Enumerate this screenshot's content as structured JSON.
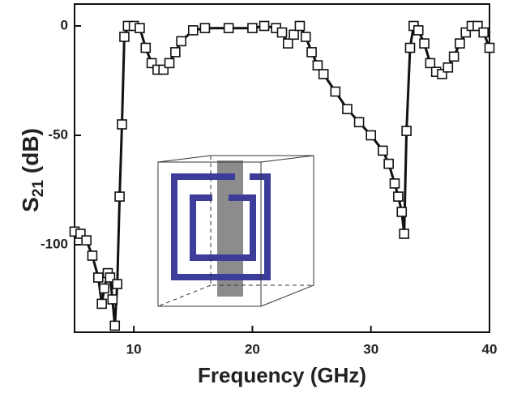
{
  "chart_data": {
    "type": "line",
    "x_label": "Frequency (GHz)",
    "y_label": {
      "main": "S",
      "sub": "21",
      "unit": "(dB)"
    },
    "xlim": [
      5,
      40
    ],
    "ylim": [
      -140,
      10
    ],
    "xticks": [
      10,
      20,
      30,
      40
    ],
    "yticks": [
      0,
      -50,
      -100
    ],
    "series": [
      {
        "color": "#111111",
        "marker": "square",
        "x": [
          5,
          5.5,
          6,
          6.5,
          7,
          7.3,
          7.5,
          7.8,
          8,
          8.2,
          8.4,
          8.6,
          8.8,
          9,
          9.2,
          9.5,
          10,
          10.5,
          11,
          11.5,
          12,
          12.5,
          13,
          13.5,
          14,
          15,
          16,
          18,
          20,
          21,
          22,
          22.5,
          23,
          23.5,
          24,
          24.5,
          25,
          25.5,
          26,
          27,
          28,
          29,
          30,
          31,
          31.5,
          32,
          32.3,
          32.6,
          32.8,
          33,
          33.3,
          33.6,
          34,
          34.5,
          35,
          35.5,
          36,
          36.5,
          37,
          37.5,
          38,
          38.5,
          39,
          39.5,
          40
        ],
        "values": [
          -94,
          -95,
          -98,
          -105,
          -115,
          -127,
          -120,
          -113,
          -115,
          -125,
          -137,
          -118,
          -78,
          -45,
          -5,
          0,
          0,
          -1,
          -10,
          -17,
          -20,
          -20,
          -17,
          -12,
          -7,
          -2,
          -1,
          -1,
          -1,
          0,
          -1,
          -3,
          -8,
          -4,
          0,
          -5,
          -12,
          -18,
          -22,
          -30,
          -38,
          -44,
          -50,
          -57,
          -63,
          -72,
          -78,
          -85,
          -95,
          -48,
          -10,
          0,
          -2,
          -8,
          -17,
          -21,
          -22,
          -19,
          -14,
          -8,
          -3,
          0,
          0,
          -3,
          -10
        ]
      }
    ]
  }
}
